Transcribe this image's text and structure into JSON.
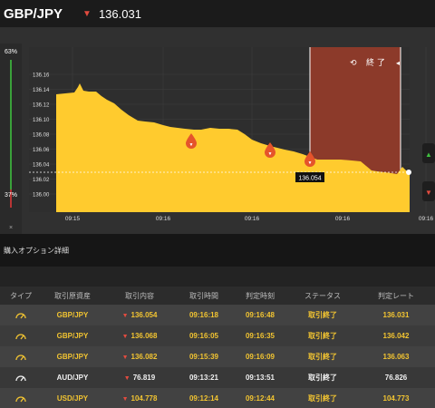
{
  "header": {
    "pair": "GBP/JPY",
    "price": "136.031",
    "direction_icon": "down-arrow-icon"
  },
  "ratio": {
    "top": "63%",
    "bottom": "37%",
    "close": "×"
  },
  "chart": {
    "yticks": [
      "136.16",
      "136.14",
      "136.12",
      "136.10",
      "136.08",
      "136.06",
      "136.04",
      "136.02",
      "136.00"
    ],
    "xticks": [
      "09:15",
      "09:16",
      "09:16",
      "09:16",
      "09:16"
    ],
    "current_label": "136.054",
    "end_label": "終 了",
    "colors": {
      "area": "#ffcb2e",
      "expiry": "#8c3a2a",
      "grid": "#404040"
    }
  },
  "section": {
    "title": "購入オプション詳細"
  },
  "table": {
    "headers": [
      "タイプ",
      "取引原資産",
      "取引内容",
      "取引時間",
      "判定時刻",
      "ステータス",
      "判定レート"
    ],
    "rows": [
      {
        "pair": "GBP/JPY",
        "content": "136.054",
        "time": "09:16:18",
        "judge": "09:16:48",
        "status": "取引終了",
        "rate": "136.031"
      },
      {
        "pair": "GBP/JPY",
        "content": "136.068",
        "time": "09:16:05",
        "judge": "09:16:35",
        "status": "取引終了",
        "rate": "136.042"
      },
      {
        "pair": "GBP/JPY",
        "content": "136.082",
        "time": "09:15:39",
        "judge": "09:16:09",
        "status": "取引終了",
        "rate": "136.063"
      },
      {
        "pair": "AUD/JPY",
        "content": "76.819",
        "time": "09:13:21",
        "judge": "09:13:51",
        "status": "取引終了",
        "rate": "76.826"
      },
      {
        "pair": "USD/JPY",
        "content": "104.778",
        "time": "09:12:14",
        "judge": "09:12:44",
        "status": "取引終了",
        "rate": "104.773"
      }
    ]
  }
}
